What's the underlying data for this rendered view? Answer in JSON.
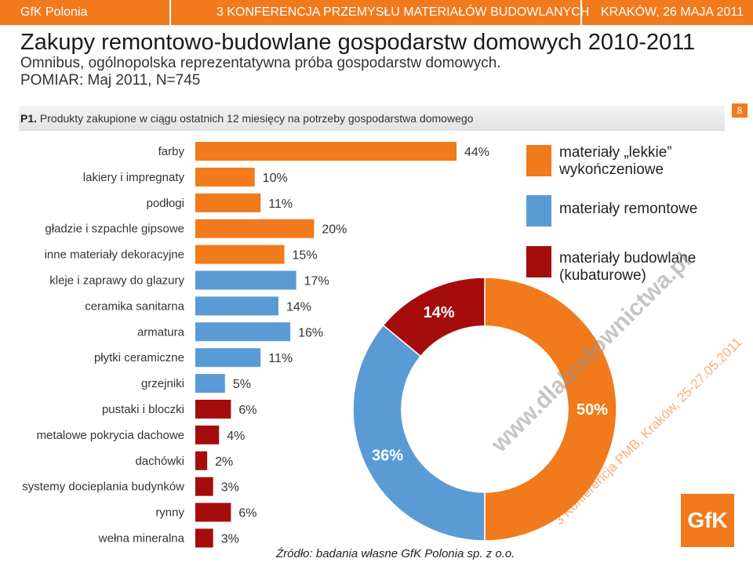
{
  "header": {
    "left": "GfK Polonia",
    "center": "3 KONFERENCJA PRZEMYSŁU MATERIAŁÓW BUDOWLANYCH",
    "right": "KRAKÓW, 26 MAJA 2011"
  },
  "title": "Zakupy remontowo-budowlane gospodarstw domowych 2010-2011",
  "subtitle1": "Omnibus, ogólnopolska reprezentatywna próba gospodarstw domowych.",
  "subtitle2": "POMIAR: Maj 2011, N=745",
  "question": {
    "code": "P1.",
    "text": "Produkty zakupione w ciągu ostatnich 12 miesięcy na potrzeby gospodarstwa domowego"
  },
  "page_number": "8",
  "legend": [
    {
      "label_line1": "materiały „lekkie”",
      "label_line2": "wykończeniowe",
      "color": "#f07a1c"
    },
    {
      "label_line1": "materiały remontowe",
      "label_line2": "",
      "color": "#5b9bd5"
    },
    {
      "label_line1": "materiały budowlane",
      "label_line2": "(kubaturowe)",
      "color": "#a50d0d"
    }
  ],
  "source": "Źródło: badania własne GfK Polonia sp. z o.o.",
  "watermark": "www.dlabudownictwa.pl",
  "watermark2": "3 Konferencja PMB, Kraków, 25-27.05.2011",
  "logo_text": "GfK",
  "chart_data": [
    {
      "type": "bar",
      "orientation": "horizontal",
      "categories": [
        "farby",
        "lakiery i impregnaty",
        "podłogi",
        "gładzie i szpachle gipsowe",
        "inne materiały dekoracyjne",
        "kleje i zaprawy do glazury",
        "ceramika sanitarna",
        "armatura",
        "płytki ceramiczne",
        "grzejniki",
        "pustaki i bloczki",
        "metalowe pokrycia dachowe",
        "dachówki",
        "systemy docieplania budynków",
        "rynny",
        "wełna mineralna"
      ],
      "values": [
        44,
        10,
        11,
        20,
        15,
        17,
        14,
        16,
        11,
        5,
        6,
        4,
        2,
        3,
        6,
        3
      ],
      "value_labels": [
        "44%",
        "10%",
        "11%",
        "20%",
        "15%",
        "17%",
        "14%",
        "16%",
        "11%",
        "5%",
        "6%",
        "4%",
        "2%",
        "3%",
        "6%",
        "3%"
      ],
      "groups": [
        "lekkie",
        "lekkie",
        "lekkie",
        "lekkie",
        "lekkie",
        "remontowe",
        "remontowe",
        "remontowe",
        "remontowe",
        "remontowe",
        "budowlane",
        "budowlane",
        "budowlane",
        "budowlane",
        "budowlane",
        "budowlane"
      ],
      "group_colors": {
        "lekkie": "#f07a1c",
        "remontowe": "#5b9bd5",
        "budowlane": "#a50d0d"
      },
      "unit": "%",
      "xlim": [
        0,
        44
      ]
    },
    {
      "type": "pie",
      "donut": true,
      "slices": [
        {
          "group": "lekkie",
          "value": 50,
          "label": "50%",
          "color": "#f07a1c"
        },
        {
          "group": "remontowe",
          "value": 36,
          "label": "36%",
          "color": "#5b9bd5"
        },
        {
          "group": "budowlane",
          "value": 14,
          "label": "14%",
          "color": "#a50d0d"
        }
      ]
    }
  ]
}
